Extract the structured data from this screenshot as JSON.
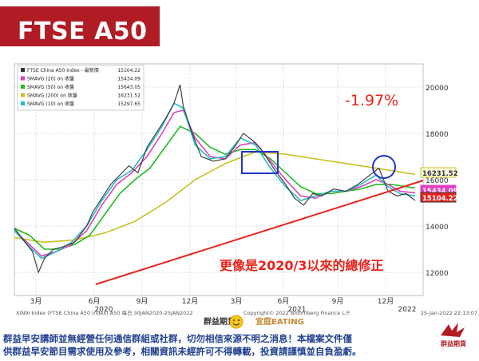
{
  "slide_title": "FTSE A50",
  "annotation_pct": "-1.97%",
  "annotation_note": "更像是2020/3以來的總修正",
  "colors": {
    "accent": "#b01c24",
    "annotation": "#e8231c",
    "footer_text": "#1f3f8f",
    "price": "#333333",
    "sma20": "#e040c0",
    "sma50": "#22bb22",
    "sma200": "#c8c020",
    "sma10": "#20c0c0",
    "trendline": "#e8231c",
    "box": "#2233cc"
  },
  "chart_data": {
    "type": "line",
    "ylim": [
      11000,
      21000
    ],
    "y_ticks": [
      12000,
      14000,
      16000,
      18000,
      20000
    ],
    "x_tick_labels": [
      "3月",
      "6月",
      "9月",
      "12月",
      "3月",
      "6月",
      "9月",
      "12月"
    ],
    "year_labels": [
      "2020",
      "2021",
      "2022"
    ],
    "legend": [
      {
        "label": "FTSE China A50 Index - 最新價",
        "value": "15104.22"
      },
      {
        "label": "SMAVG (20)  on 收盤",
        "value": "15434.09"
      },
      {
        "label": "SMAVG (50)  on 收盤",
        "value": "15643.05"
      },
      {
        "label": "SMAVG (200) on 收盤",
        "value": "16231.52"
      },
      {
        "label": "SMAVG (10)  on 收盤",
        "value": "15297.65"
      }
    ],
    "price_tags": [
      "16231.52",
      "15434.09",
      "15104.22"
    ],
    "footer_source": "XIN9I Index (FTSE China A50 Index) A50  每日 30JAN2020-25JAN2022",
    "footer_copyright": "Copyright© 2022 Bloomberg Finance L.P.",
    "footer_timestamp": "25-Jan-2022 22:13:07",
    "series": [
      {
        "name": "FTSE China A50 Index",
        "points": [
          [
            0,
            13900
          ],
          [
            3,
            13400
          ],
          [
            6,
            12900
          ],
          [
            8,
            12000
          ],
          [
            10,
            12600
          ],
          [
            13,
            13000
          ],
          [
            16,
            13100
          ],
          [
            20,
            13300
          ],
          [
            24,
            14000
          ],
          [
            26,
            14600
          ],
          [
            30,
            15400
          ],
          [
            32,
            15800
          ],
          [
            35,
            16200
          ],
          [
            38,
            16600
          ],
          [
            41,
            16300
          ],
          [
            44,
            17400
          ],
          [
            47,
            18000
          ],
          [
            50,
            18600
          ],
          [
            53,
            19300
          ],
          [
            55,
            20100
          ],
          [
            56,
            19200
          ],
          [
            59,
            18000
          ],
          [
            62,
            17000
          ],
          [
            66,
            16800
          ],
          [
            70,
            16900
          ],
          [
            73,
            17400
          ],
          [
            76,
            18000
          ],
          [
            79,
            17700
          ],
          [
            82,
            17300
          ],
          [
            86,
            16500
          ],
          [
            90,
            15800
          ],
          [
            93,
            15200
          ],
          [
            96,
            14900
          ],
          [
            99,
            15400
          ],
          [
            102,
            15300
          ],
          [
            106,
            15600
          ],
          [
            110,
            15500
          ],
          [
            114,
            15800
          ],
          [
            118,
            16200
          ],
          [
            121,
            16500
          ],
          [
            124,
            15500
          ],
          [
            127,
            15300
          ],
          [
            130,
            15400
          ],
          [
            133,
            15100
          ]
        ]
      },
      {
        "name": "SMAVG (20)",
        "points": [
          [
            0,
            13800
          ],
          [
            5,
            13200
          ],
          [
            9,
            12700
          ],
          [
            14,
            12900
          ],
          [
            19,
            13200
          ],
          [
            24,
            13800
          ],
          [
            29,
            14900
          ],
          [
            34,
            15800
          ],
          [
            39,
            16300
          ],
          [
            44,
            17000
          ],
          [
            49,
            18000
          ],
          [
            53,
            18900
          ],
          [
            56,
            19000
          ],
          [
            60,
            17800
          ],
          [
            65,
            17000
          ],
          [
            70,
            16900
          ],
          [
            75,
            17500
          ],
          [
            80,
            17600
          ],
          [
            85,
            16800
          ],
          [
            90,
            16000
          ],
          [
            95,
            15300
          ],
          [
            100,
            15200
          ],
          [
            105,
            15500
          ],
          [
            110,
            15500
          ],
          [
            115,
            15700
          ],
          [
            120,
            16000
          ],
          [
            124,
            15800
          ],
          [
            128,
            15500
          ],
          [
            133,
            15434
          ]
        ]
      },
      {
        "name": "SMAVG (50)",
        "points": [
          [
            0,
            13900
          ],
          [
            5,
            13600
          ],
          [
            10,
            13000
          ],
          [
            15,
            13000
          ],
          [
            20,
            13200
          ],
          [
            25,
            13600
          ],
          [
            30,
            14500
          ],
          [
            35,
            15400
          ],
          [
            40,
            16000
          ],
          [
            45,
            16500
          ],
          [
            50,
            17400
          ],
          [
            55,
            18300
          ],
          [
            60,
            18000
          ],
          [
            65,
            17400
          ],
          [
            70,
            17100
          ],
          [
            75,
            17300
          ],
          [
            80,
            17300
          ],
          [
            85,
            16900
          ],
          [
            90,
            16300
          ],
          [
            95,
            15700
          ],
          [
            100,
            15400
          ],
          [
            105,
            15400
          ],
          [
            110,
            15500
          ],
          [
            115,
            15600
          ],
          [
            120,
            15800
          ],
          [
            125,
            15800
          ],
          [
            133,
            15643
          ]
        ]
      },
      {
        "name": "SMAVG (200)",
        "points": [
          [
            0,
            13500
          ],
          [
            10,
            13300
          ],
          [
            20,
            13400
          ],
          [
            30,
            13700
          ],
          [
            40,
            14200
          ],
          [
            50,
            15000
          ],
          [
            60,
            16000
          ],
          [
            70,
            16700
          ],
          [
            80,
            17200
          ],
          [
            90,
            17100
          ],
          [
            100,
            16900
          ],
          [
            110,
            16700
          ],
          [
            120,
            16500
          ],
          [
            133,
            16231
          ]
        ]
      },
      {
        "name": "SMAVG (10)",
        "points": [
          [
            0,
            13800
          ],
          [
            5,
            13100
          ],
          [
            9,
            12600
          ],
          [
            14,
            12900
          ],
          [
            19,
            13300
          ],
          [
            24,
            14000
          ],
          [
            29,
            15100
          ],
          [
            34,
            16000
          ],
          [
            39,
            16400
          ],
          [
            44,
            17300
          ],
          [
            49,
            18300
          ],
          [
            53,
            19300
          ],
          [
            56,
            19100
          ],
          [
            60,
            17500
          ],
          [
            65,
            16900
          ],
          [
            70,
            17000
          ],
          [
            75,
            17800
          ],
          [
            80,
            17500
          ],
          [
            85,
            16500
          ],
          [
            90,
            15700
          ],
          [
            95,
            15100
          ],
          [
            100,
            15300
          ],
          [
            105,
            15500
          ],
          [
            110,
            15500
          ],
          [
            115,
            15800
          ],
          [
            120,
            16200
          ],
          [
            124,
            15700
          ],
          [
            128,
            15400
          ],
          [
            133,
            15298
          ]
        ]
      }
    ]
  },
  "footer": {
    "line1": "群益早安講師並無經營任何通信群組或社群，切勿相信來源不明之消息！本檔案文件僅",
    "line2": "供群益早安節目需求使用及參考，相關資訊未經許可不得轉載，投資請謹慎並自負盈虧。",
    "brand_left": "群益期貨",
    "brand_right": "宜庭EATING",
    "logo": "群益期貨"
  }
}
